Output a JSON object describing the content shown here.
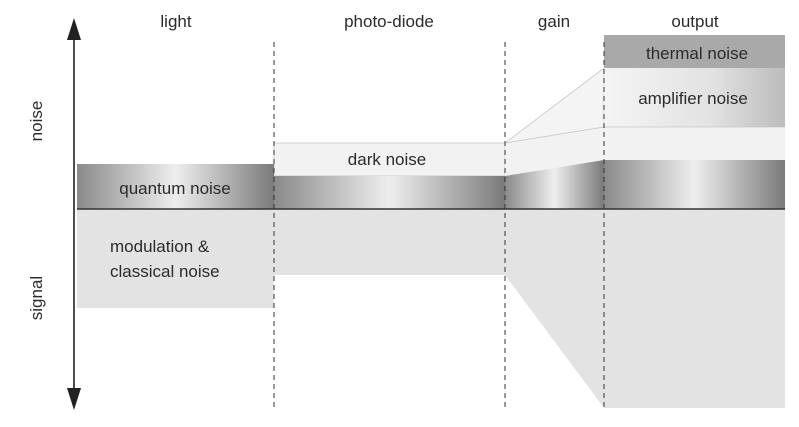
{
  "columns": {
    "light": "light",
    "photodiode": "photo-diode",
    "gain": "gain",
    "output": "output"
  },
  "axis": {
    "up": "noise",
    "down": "signal"
  },
  "labels": {
    "quantum_noise": "quantum noise",
    "dark_noise": "dark noise",
    "thermal_noise": "thermal noise",
    "amplifier_noise": "amplifier noise",
    "modulation_line1": "modulation &",
    "modulation_line2": "classical noise"
  },
  "colors": {
    "signal_fill": "#e3e3e3",
    "dark_noise_fill": "#f2f2f2",
    "thermal_noise_fill": "#a9a9a9",
    "baseline": "#333333",
    "divider": "#333333"
  }
}
